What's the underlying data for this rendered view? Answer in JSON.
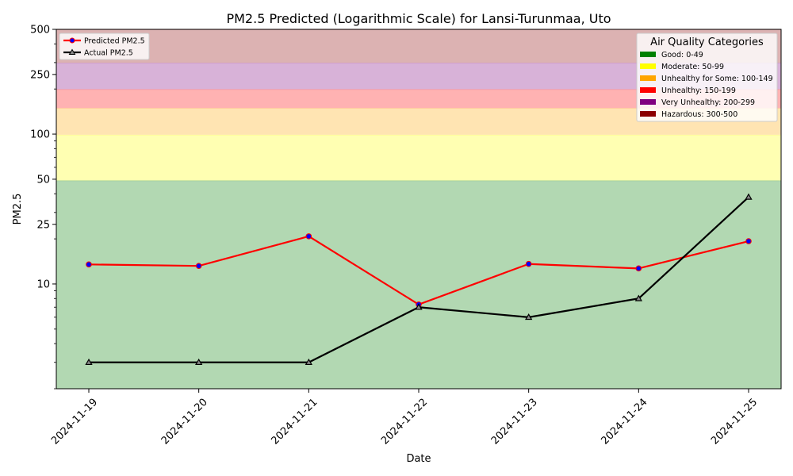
{
  "chart_data": {
    "type": "line",
    "title": "PM2.5 Predicted (Logarithmic Scale) for Lansi-Turunmaa, Uto",
    "xlabel": "Date",
    "ylabel": "PM2.5",
    "yscale": "log",
    "ylim": [
      2,
      500
    ],
    "yticks": [
      10,
      25,
      50,
      100,
      250,
      500
    ],
    "ytick_labels": [
      "10",
      "25",
      "50",
      "100",
      "250",
      "500"
    ],
    "categories": [
      "2024-11-19",
      "2024-11-20",
      "2024-11-21",
      "2024-11-22",
      "2024-11-23",
      "2024-11-24",
      "2024-11-25"
    ],
    "series": [
      {
        "name": "Predicted PM2.5",
        "color": "#ff0000",
        "marker": "circle",
        "marker_color": "#0000ff",
        "values": [
          13.5,
          13.2,
          20.8,
          7.3,
          13.6,
          12.7,
          19.3
        ]
      },
      {
        "name": "Actual PM2.5",
        "color": "#000000",
        "marker": "triangle",
        "marker_color": "#000000",
        "values": [
          3.0,
          3.0,
          3.0,
          7.0,
          6.0,
          8.0,
          38.0
        ]
      }
    ],
    "legend_position": "top-left",
    "grid": false,
    "bands": {
      "title": "Air Quality Categories",
      "legend_position": "top-right",
      "items": [
        {
          "label": "Good: 0-49",
          "min": 0,
          "max": 49,
          "color": "#008000",
          "fill": "#b2d8b2"
        },
        {
          "label": "Moderate: 50-99",
          "min": 49,
          "max": 99,
          "color": "#ffff00",
          "fill": "#ffffb2"
        },
        {
          "label": "Unhealthy for Some: 100-149",
          "min": 99,
          "max": 149,
          "color": "#ffa500",
          "fill": "#ffe4b2"
        },
        {
          "label": "Unhealthy: 150-199",
          "min": 149,
          "max": 199,
          "color": "#ff0000",
          "fill": "#ffb2b2"
        },
        {
          "label": "Very Unhealthy: 200-299",
          "min": 199,
          "max": 299,
          "color": "#800080",
          "fill": "#d8b2d8"
        },
        {
          "label": "Hazardous: 300-500",
          "min": 299,
          "max": 500,
          "color": "#8b0000",
          "fill": "#dcb2b2"
        }
      ]
    }
  }
}
